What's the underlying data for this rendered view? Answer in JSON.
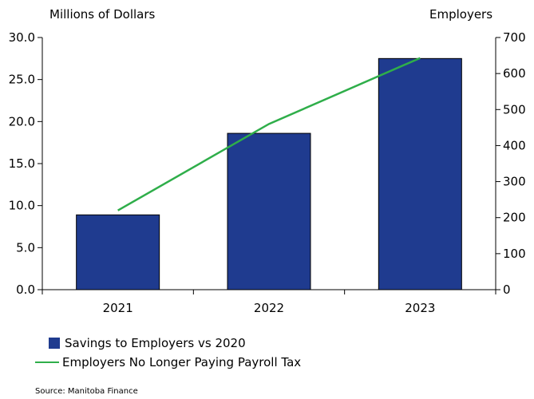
{
  "chart_data": {
    "type": "bar",
    "categories": [
      "2021",
      "2022",
      "2023"
    ],
    "series": [
      {
        "name": "Savings to Employers vs 2020",
        "type": "bar",
        "axis": "left",
        "values": [
          8.9,
          18.6,
          27.5
        ],
        "color": "#1f3b8f"
      },
      {
        "name": "Employers No Longer Paying Payroll Tax",
        "type": "line",
        "axis": "right",
        "values": [
          220,
          460,
          643
        ],
        "color": "#2fae4a"
      }
    ],
    "ylabel": "Millions of Dollars",
    "y2label": "Employers",
    "ylim": [
      0,
      30
    ],
    "y2lim": [
      0,
      700
    ],
    "yticks": [
      "0.0",
      "5.0",
      "10.0",
      "15.0",
      "20.0",
      "25.0",
      "30.0"
    ],
    "y2ticks": [
      "0",
      "100",
      "200",
      "300",
      "400",
      "500",
      "600",
      "700"
    ],
    "grid": false,
    "legend_position": "bottom-left",
    "source": "Source: Manitoba Finance"
  }
}
